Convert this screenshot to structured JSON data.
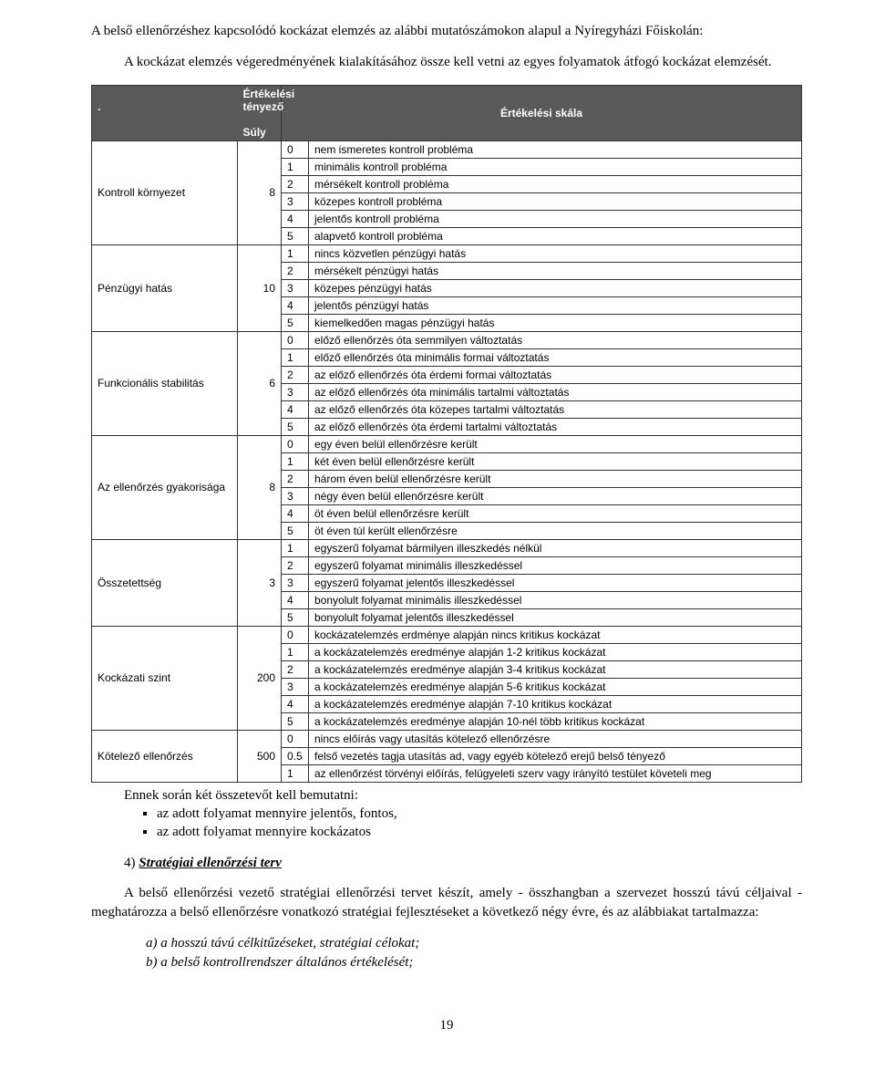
{
  "intro1": "A belső ellenőrzéshez kapcsolódó kockázat elemzés az alábbi mutatószámokon alapul a Nyíregyházi Főiskolán:",
  "intro2": "A kockázat elemzés végeredményének kialakításához össze kell vetni az egyes folyamatok átfogó kockázat elemzését.",
  "table": {
    "header_corner": "´",
    "h_factor": "Értékelési tényező",
    "h_weight": "Súly",
    "h_scale": "Értékelési skála",
    "factors": [
      {
        "name": "Kontroll környezet",
        "weight": "8",
        "rows": [
          {
            "c": "0",
            "t": "nem ismeretes kontroll probléma"
          },
          {
            "c": "1",
            "t": "minimális kontroll probléma"
          },
          {
            "c": "2",
            "t": "mérsékelt kontroll probléma"
          },
          {
            "c": "3",
            "t": "közepes kontroll probléma"
          },
          {
            "c": "4",
            "t": "jelentős kontroll probléma"
          },
          {
            "c": "5",
            "t": "alapvető kontroll probléma"
          }
        ]
      },
      {
        "name": "Pénzügyi hatás",
        "weight": "10",
        "rows": [
          {
            "c": "1",
            "t": "nincs közvetlen pénzügyi hatás"
          },
          {
            "c": "2",
            "t": "mérsékelt pénzügyi hatás"
          },
          {
            "c": "3",
            "t": "közepes pénzügyi hatás"
          },
          {
            "c": "4",
            "t": "jelentős pénzügyi hatás"
          },
          {
            "c": "5",
            "t": "kiemelkedően magas pénzügyi hatás"
          }
        ]
      },
      {
        "name": "Funkcionális stabilitás",
        "weight": "6",
        "rows": [
          {
            "c": "0",
            "t": "előző ellenőrzés óta semmilyen változtatás"
          },
          {
            "c": "1",
            "t": "előző ellenőrzés óta minimális formai változtatás"
          },
          {
            "c": "2",
            "t": "az előző ellenőrzés óta érdemi formai változtatás"
          },
          {
            "c": "3",
            "t": "az előző ellenőrzés óta minimális tartalmi változtatás"
          },
          {
            "c": "4",
            "t": "az előző ellenőrzés óta közepes tartalmi változtatás"
          },
          {
            "c": "5",
            "t": "az előző ellenőrzés óta érdemi tartalmi változtatás"
          }
        ]
      },
      {
        "name": "Az ellenőrzés gyakorisága",
        "weight": "8",
        "rows": [
          {
            "c": "0",
            "t": "egy éven belül ellenőrzésre került"
          },
          {
            "c": "1",
            "t": "két éven belül ellenőrzésre került"
          },
          {
            "c": "2",
            "t": "három éven belül ellenőrzésre került"
          },
          {
            "c": "3",
            "t": "négy éven belül ellenőrzésre került"
          },
          {
            "c": "4",
            "t": "öt éven belül ellenőrzésre került"
          },
          {
            "c": "5",
            "t": "öt éven túl került ellenőrzésre"
          }
        ]
      },
      {
        "name": "Összetettség",
        "weight": "3",
        "rows": [
          {
            "c": "1",
            "t": "egyszerű folyamat bármilyen illeszkedés nélkül"
          },
          {
            "c": "2",
            "t": "egyszerű folyamat minimális illeszkedéssel"
          },
          {
            "c": "3",
            "t": "egyszerű folyamat jelentős illeszkedéssel"
          },
          {
            "c": "4",
            "t": "bonyolult folyamat minimális illeszkedéssel"
          },
          {
            "c": "5",
            "t": "bonyolult folyamat jelentős illeszkedéssel"
          }
        ]
      },
      {
        "name": "Kockázati szint",
        "weight": "200",
        "rows": [
          {
            "c": "0",
            "t": "kockázatelemzés erdménye alapján nincs kritikus kockázat"
          },
          {
            "c": "1",
            "t": "a kockázatelemzés eredménye alapján 1-2 kritikus kockázat"
          },
          {
            "c": "2",
            "t": "a kockázatelemzés eredménye alapján 3-4 kritikus kockázat"
          },
          {
            "c": "3",
            "t": "a kockázatelemzés eredménye alapján 5-6 kritikus kockázat"
          },
          {
            "c": "4",
            "t": "a kockázatelemzés eredménye alapján 7-10 kritikus kockázat"
          },
          {
            "c": "5",
            "t": "a kockázatelemzés eredménye alapján 10-nél több kritikus kockázat"
          }
        ]
      },
      {
        "name": "Kötelező ellenőrzés",
        "weight": "500",
        "rows": [
          {
            "c": "0",
            "t": "nincs előírás vagy utasítás kötelező ellenőrzésre"
          },
          {
            "c": "0.5",
            "t": "felső vezetés tagja utasítás ad, vagy egyéb kötelező erejű belső tényező"
          },
          {
            "c": "1",
            "t": "az ellenőrzést törvényi előírás, felügyeleti szerv vagy irányító testület követeli meg"
          }
        ]
      }
    ]
  },
  "after_table": "Ennek során két összetevőt kell bemutatni:",
  "bullets": [
    "az adott folyamat mennyire jelentős, fontos,",
    "az adott folyamat mennyire kockázatos"
  ],
  "heading4": {
    "num": "4)",
    "title": "Stratégiai ellenőrzési terv"
  },
  "closing": "A belső ellenőrzési vezető stratégiai ellenőrzési tervet készít, amely - összhangban a szervezet hosszú távú céljaival - meghatározza a belső ellenőrzésre vonatkozó stratégiai fejlesztéseket a következő négy évre, és az alábbiakat tartalmazza:",
  "abc": [
    "a) a hosszú távú célkitűzéseket, stratégiai célokat;",
    "b) a belső kontrollrendszer általános értékelését;"
  ],
  "pagenum": "19"
}
